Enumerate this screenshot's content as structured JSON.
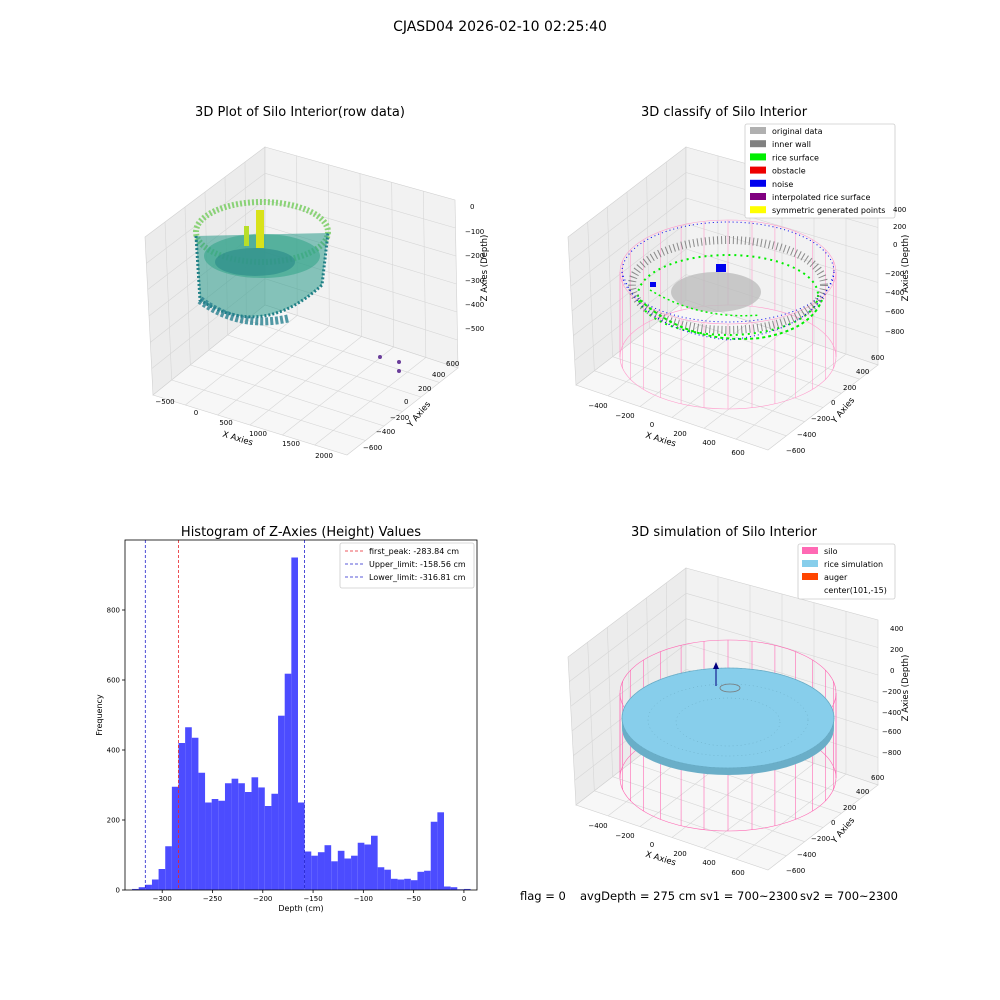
{
  "figure": {
    "suptitle": "CJASD04 2026-02-10 02:25:40",
    "footer": {
      "flag": "flag = 0",
      "avg_depth": "avgDepth = 275 cm",
      "sv1": "sv1 = 700~2300",
      "sv2": "sv2 = 700~2300"
    }
  },
  "colors": {
    "hist_bar": "#4c4cff",
    "first_peak": "#e8252b",
    "limits": "#2222cc",
    "silo": "#ff69b4",
    "rice": "#87ceeb",
    "auger": "#ff4500",
    "rice_surface": "#00ee00",
    "noise": "#0000ee",
    "original": "#b0b0b0",
    "inner_wall": "#808080",
    "interpolated": "#800080",
    "symmetric": "#ffff00"
  },
  "panels": {
    "raw": {
      "title": "3D Plot of Silo Interior(row data)",
      "xlabel": "X Axies",
      "ylabel": "Y Axies",
      "zlabel": "Z Axies (Depth)",
      "xticks": [
        "−500",
        "0",
        "500",
        "1000",
        "1500",
        "2000"
      ],
      "yticks": [
        "−600",
        "−400",
        "−200",
        "0",
        "200",
        "400",
        "600"
      ],
      "zticks": [
        "0",
        "−100",
        "−200",
        "−300",
        "−400",
        "−500"
      ]
    },
    "classify": {
      "title": "3D classify of Silo Interior",
      "xlabel": "X Axies",
      "ylabel": "Y Axies",
      "zlabel": "Z Axies (Depth)",
      "xticks": [
        "−400",
        "−200",
        "0",
        "200",
        "400",
        "600"
      ],
      "yticks": [
        "−600",
        "−400",
        "−200",
        "0",
        "200",
        "400",
        "600"
      ],
      "zticks": [
        "400",
        "200",
        "0",
        "−200",
        "−400",
        "−600",
        "−800"
      ],
      "legend": [
        {
          "label": "original data",
          "color": "#b0b0b0"
        },
        {
          "label": "inner wall",
          "color": "#808080"
        },
        {
          "label": "rice surface",
          "color": "#00ee00"
        },
        {
          "label": "obstacle",
          "color": "#ee0000"
        },
        {
          "label": "noise",
          "color": "#0000ee"
        },
        {
          "label": "interpolated rice surface",
          "color": "#800080"
        },
        {
          "label": "symmetric generated points",
          "color": "#ffff00"
        }
      ]
    },
    "simulation": {
      "title": "3D simulation of Silo Interior",
      "xlabel": "X Axies",
      "ylabel": "Y Axies",
      "zlabel": "Z Axies (Depth)",
      "xticks": [
        "−400",
        "−200",
        "0",
        "200",
        "400",
        "600"
      ],
      "yticks": [
        "−600",
        "−400",
        "−200",
        "0",
        "200",
        "400",
        "600"
      ],
      "zticks": [
        "400",
        "200",
        "0",
        "−200",
        "−400",
        "−600",
        "−800"
      ],
      "legend": [
        {
          "label": "silo",
          "color": "#ff69b4"
        },
        {
          "label": "rice simulation",
          "color": "#87ceeb"
        },
        {
          "label": "auger",
          "color": "#ff4500"
        },
        {
          "label": "center(101,-15)",
          "color": ""
        }
      ]
    }
  },
  "chart_data": {
    "type": "bar",
    "title": "Histogram of Z-Axies (Height) Values",
    "xlabel": "Depth (cm)",
    "ylabel": "Frequency",
    "xlim": [
      -337,
      13
    ],
    "ylim": [
      0,
      1000
    ],
    "xticks": [
      -300,
      -250,
      -200,
      -150,
      -100,
      -50,
      0
    ],
    "yticks": [
      0,
      200,
      400,
      600,
      800
    ],
    "xtick_labels": [
      "−300",
      "−250",
      "−200",
      "−150",
      "−100",
      "−50",
      "0"
    ],
    "ytick_labels": [
      "0",
      "200",
      "400",
      "600",
      "800"
    ],
    "bin_start": -330,
    "bin_width": 6.6,
    "values": [
      3,
      8,
      15,
      30,
      60,
      125,
      295,
      420,
      465,
      435,
      335,
      250,
      260,
      255,
      305,
      318,
      305,
      280,
      322,
      293,
      240,
      275,
      498,
      618,
      950,
      250,
      110,
      98,
      108,
      128,
      82,
      112,
      90,
      98,
      135,
      130,
      155,
      65,
      58,
      32,
      30,
      32,
      28,
      52,
      55,
      195,
      222,
      10,
      8,
      2,
      3
    ],
    "legend": [
      {
        "label": "first_peak: -283.84 cm",
        "color": "#e8252b"
      },
      {
        "label": "Upper_limit: -158.56 cm",
        "color": "#2222cc"
      },
      {
        "label": "Lower_limit: -316.81 cm",
        "color": "#2222cc"
      }
    ],
    "vlines": {
      "first_peak": -283.84,
      "upper_limit": -158.56,
      "lower_limit": -316.81
    }
  }
}
